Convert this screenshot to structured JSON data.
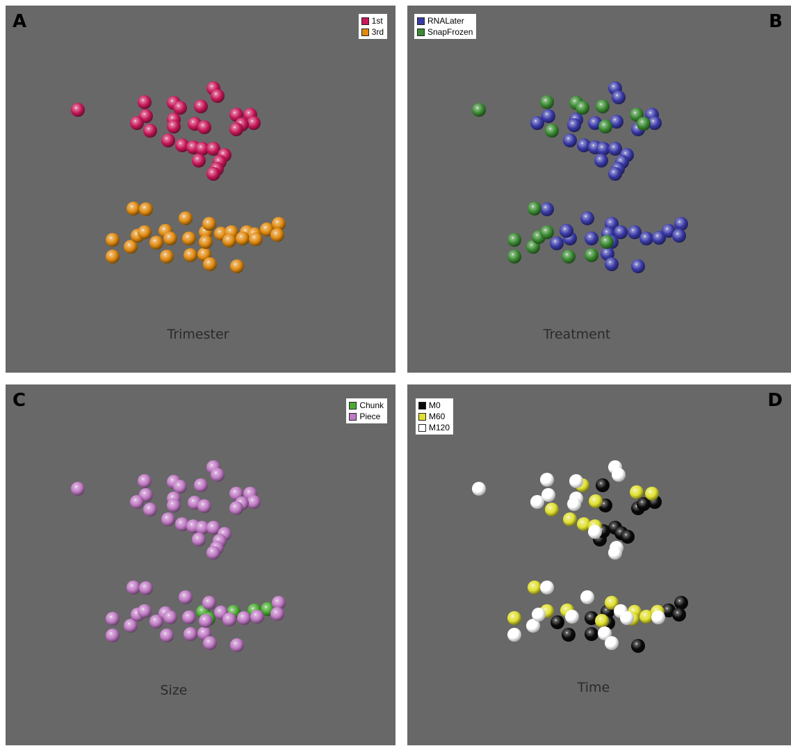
{
  "chart_data": [
    {
      "type": "scatter",
      "letter": "A",
      "caption": "Trimester",
      "legend": [
        {
          "label": "1st",
          "color": "#c8185a"
        },
        {
          "label": "3rd",
          "color": "#e08a10"
        }
      ],
      "series": [
        {
          "name": "1st",
          "color": "#c8185a",
          "points": [
            [
              112,
              158
            ],
            [
              208,
              147
            ],
            [
              250,
              148
            ],
            [
              259,
              155
            ],
            [
              289,
              153
            ],
            [
              307,
              127
            ],
            [
              313,
              138
            ],
            [
              210,
              167
            ],
            [
              197,
              177
            ],
            [
              216,
              188
            ],
            [
              250,
              172
            ],
            [
              280,
              178
            ],
            [
              294,
              183
            ],
            [
              250,
              182
            ],
            [
              340,
              165
            ],
            [
              360,
              165
            ],
            [
              365,
              177
            ],
            [
              348,
              179
            ],
            [
              340,
              186
            ],
            [
              242,
              202
            ],
            [
              262,
              209
            ],
            [
              278,
              212
            ],
            [
              291,
              214
            ],
            [
              307,
              214
            ],
            [
              323,
              223
            ],
            [
              316,
              233
            ],
            [
              286,
              231
            ],
            [
              312,
              243
            ],
            [
              307,
              250
            ]
          ]
        },
        {
          "name": "3rd",
          "color": "#e08a10",
          "points": [
            [
              192,
              300
            ],
            [
              210,
              301
            ],
            [
              267,
              314
            ],
            [
              162,
              345
            ],
            [
              188,
              355
            ],
            [
              198,
              339
            ],
            [
              208,
              334
            ],
            [
              225,
              349
            ],
            [
              238,
              332
            ],
            [
              245,
              343
            ],
            [
              272,
              343
            ],
            [
              296,
              334
            ],
            [
              301,
              322
            ],
            [
              318,
              336
            ],
            [
              333,
              334
            ],
            [
              355,
              334
            ],
            [
              366,
              337
            ],
            [
              384,
              330
            ],
            [
              401,
              322
            ],
            [
              399,
              338
            ],
            [
              162,
              369
            ],
            [
              240,
              369
            ],
            [
              274,
              367
            ],
            [
              294,
              366
            ],
            [
              296,
              348
            ],
            [
              302,
              380
            ],
            [
              341,
              383
            ],
            [
              330,
              346
            ],
            [
              349,
              343
            ],
            [
              368,
              344
            ]
          ]
        }
      ]
    },
    {
      "type": "scatter",
      "letter": "B",
      "caption": "Treatment",
      "legend": [
        {
          "label": "RNALater",
          "color": "#3a3aa8"
        },
        {
          "label": "SnapFrozen",
          "color": "#3a8a32"
        }
      ],
      "series": [
        {
          "name": "RNALater",
          "color": "#3a3aa8",
          "points": [
            [
              885,
              127
            ],
            [
              890,
              140
            ],
            [
              773,
              177
            ],
            [
              789,
              167
            ],
            [
              829,
              172
            ],
            [
              826,
              180
            ],
            [
              856,
              177
            ],
            [
              887,
              175
            ],
            [
              938,
              165
            ],
            [
              942,
              177
            ],
            [
              918,
              186
            ],
            [
              820,
              202
            ],
            [
              840,
              209
            ],
            [
              856,
              212
            ],
            [
              868,
              214
            ],
            [
              885,
              214
            ],
            [
              902,
              223
            ],
            [
              895,
              233
            ],
            [
              865,
              231
            ],
            [
              889,
              243
            ],
            [
              885,
              250
            ],
            [
              787,
              301
            ],
            [
              845,
              314
            ],
            [
              801,
              350
            ],
            [
              820,
              343
            ],
            [
              815,
              332
            ],
            [
              851,
              343
            ],
            [
              880,
              322
            ],
            [
              875,
              336
            ],
            [
              893,
              334
            ],
            [
              913,
              334
            ],
            [
              930,
              343
            ],
            [
              948,
              342
            ],
            [
              962,
              332
            ],
            [
              980,
              322
            ],
            [
              977,
              339
            ],
            [
              880,
              348
            ],
            [
              874,
              365
            ],
            [
              880,
              380
            ],
            [
              918,
              383
            ]
          ]
        },
        {
          "name": "SnapFrozen",
          "color": "#3a8a32",
          "points": [
            [
              689,
              158
            ],
            [
              787,
              147
            ],
            [
              829,
              148
            ],
            [
              838,
              155
            ],
            [
              867,
              153
            ],
            [
              916,
              165
            ],
            [
              926,
              178
            ],
            [
              794,
              188
            ],
            [
              871,
              182
            ],
            [
              769,
              300
            ],
            [
              740,
              345
            ],
            [
              767,
              355
            ],
            [
              775,
              341
            ],
            [
              787,
              334
            ],
            [
              740,
              369
            ],
            [
              818,
              369
            ],
            [
              851,
              367
            ],
            [
              873,
              348
            ]
          ]
        }
      ]
    },
    {
      "type": "scatter",
      "letter": "C",
      "caption": "Size",
      "legend": [
        {
          "label": "Chunk",
          "color": "#4aaa32"
        },
        {
          "label": "Piece",
          "color": "#c07ac4"
        }
      ],
      "series": [
        {
          "name": "Chunk",
          "color": "#4aaa32",
          "points": [
            [
              292,
              880
            ],
            [
              336,
              880
            ],
            [
              366,
              878
            ],
            [
              385,
              876
            ],
            [
              300,
              890
            ]
          ]
        },
        {
          "name": "Piece",
          "color": "#c07ac4",
          "points": [
            [
              112,
              703
            ],
            [
              208,
              692
            ],
            [
              250,
              693
            ],
            [
              259,
              700
            ],
            [
              289,
              698
            ],
            [
              307,
              672
            ],
            [
              313,
              683
            ],
            [
              210,
              712
            ],
            [
              197,
              722
            ],
            [
              216,
              733
            ],
            [
              250,
              717
            ],
            [
              280,
              723
            ],
            [
              294,
              728
            ],
            [
              250,
              727
            ],
            [
              340,
              710
            ],
            [
              360,
              710
            ],
            [
              365,
              722
            ],
            [
              348,
              724
            ],
            [
              340,
              731
            ],
            [
              242,
              747
            ],
            [
              262,
              754
            ],
            [
              278,
              757
            ],
            [
              291,
              759
            ],
            [
              307,
              759
            ],
            [
              323,
              768
            ],
            [
              316,
              778
            ],
            [
              286,
              776
            ],
            [
              312,
              788
            ],
            [
              307,
              795
            ],
            [
              192,
              845
            ],
            [
              210,
              846
            ],
            [
              267,
              859
            ],
            [
              162,
              890
            ],
            [
              188,
              900
            ],
            [
              198,
              884
            ],
            [
              208,
              879
            ],
            [
              225,
              894
            ],
            [
              238,
              882
            ],
            [
              245,
              888
            ],
            [
              272,
              888
            ],
            [
              301,
              867
            ],
            [
              318,
              881
            ],
            [
              351,
              889
            ],
            [
              370,
              887
            ],
            [
              401,
              867
            ],
            [
              399,
              883
            ],
            [
              162,
              914
            ],
            [
              240,
              914
            ],
            [
              274,
              912
            ],
            [
              294,
              911
            ],
            [
              296,
              893
            ],
            [
              302,
              925
            ],
            [
              341,
              928
            ],
            [
              330,
              891
            ]
          ]
        }
      ]
    },
    {
      "type": "scatter",
      "letter": "D",
      "caption": "Time",
      "legend": [
        {
          "label": "M0",
          "color": "#0a0a0a"
        },
        {
          "label": "M60",
          "color": "#e0e030"
        },
        {
          "label": "M120",
          "color": "#ffffff"
        }
      ],
      "series": [
        {
          "name": "M0",
          "color": "#0a0a0a",
          "points": [
            [
              867,
              698
            ],
            [
              871,
              727
            ],
            [
              918,
              731
            ],
            [
              942,
              722
            ],
            [
              926,
              725
            ],
            [
              885,
              759
            ],
            [
              894,
              767
            ],
            [
              903,
              772
            ],
            [
              863,
              776
            ],
            [
              868,
              764
            ],
            [
              802,
              895
            ],
            [
              818,
              913
            ],
            [
              851,
              889
            ],
            [
              874,
              880
            ],
            [
              875,
              896
            ],
            [
              851,
              912
            ],
            [
              918,
              929
            ],
            [
              962,
              878
            ],
            [
              980,
              867
            ],
            [
              977,
              884
            ]
          ]
        },
        {
          "name": "M60",
          "color": "#e0e030",
          "points": [
            [
              838,
              698
            ],
            [
              916,
              708
            ],
            [
              938,
              710
            ],
            [
              794,
              733
            ],
            [
              820,
              747
            ],
            [
              840,
              754
            ],
            [
              856,
              757
            ],
            [
              857,
              721
            ],
            [
              769,
              845
            ],
            [
              740,
              889
            ],
            [
              787,
              879
            ],
            [
              816,
              878
            ],
            [
              880,
              867
            ],
            [
              866,
              893
            ],
            [
              913,
              880
            ],
            [
              930,
              887
            ],
            [
              910,
              890
            ],
            [
              946,
              880
            ]
          ]
        },
        {
          "name": "M120",
          "color": "#ffffff",
          "points": [
            [
              689,
              703
            ],
            [
              787,
              690
            ],
            [
              829,
              692
            ],
            [
              885,
              672
            ],
            [
              890,
              683
            ],
            [
              773,
              722
            ],
            [
              789,
              712
            ],
            [
              829,
              717
            ],
            [
              826,
              725
            ],
            [
              856,
              765
            ],
            [
              887,
              788
            ],
            [
              885,
              795
            ],
            [
              787,
              845
            ],
            [
              845,
              859
            ],
            [
              767,
              900
            ],
            [
              775,
              884
            ],
            [
              740,
              913
            ],
            [
              823,
              887
            ],
            [
              893,
              879
            ],
            [
              902,
              889
            ],
            [
              947,
              888
            ],
            [
              870,
              911
            ],
            [
              880,
              925
            ]
          ]
        }
      ]
    }
  ]
}
